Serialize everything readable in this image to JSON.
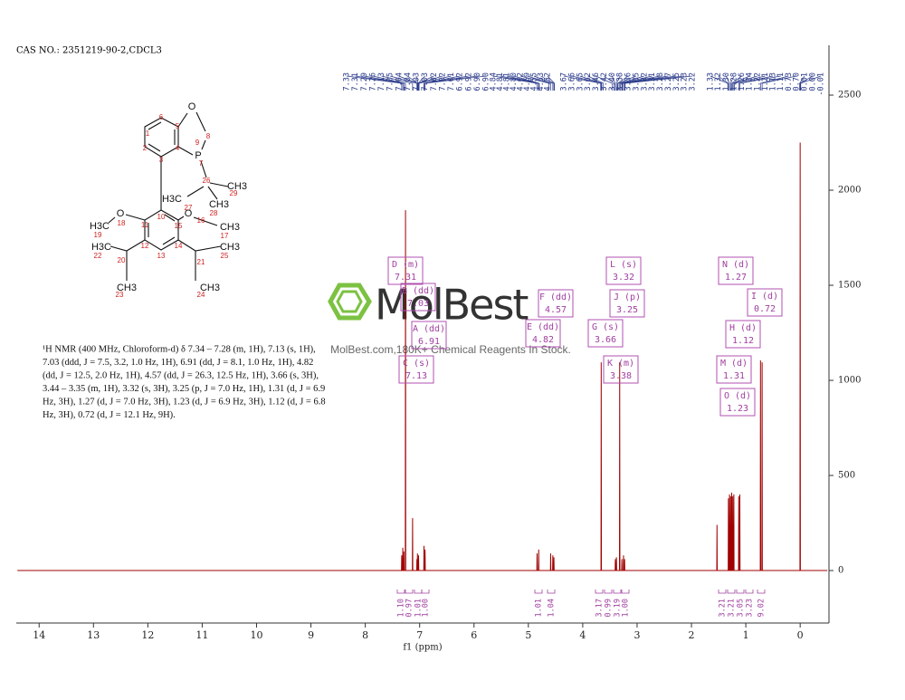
{
  "chart_data": {
    "type": "line",
    "title": "CAS NO.: 2351219-90-2,CDCL3",
    "x_label": "f1 (ppm)",
    "xlim": [
      14.42,
      -0.53
    ],
    "xticks": [
      14,
      13,
      12,
      11,
      10,
      9,
      8,
      7,
      6,
      5,
      4,
      3,
      2,
      1,
      0
    ],
    "ylim": [
      -276,
      2762
    ],
    "yticks": [
      0,
      500,
      1000,
      1500,
      2000,
      2500
    ],
    "x": [
      14.4,
      7.334,
      7.33,
      7.326,
      7.314,
      7.31,
      7.306,
      7.294,
      7.29,
      7.286,
      7.264,
      7.26,
      7.256,
      7.134,
      7.13,
      7.126,
      7.054,
      7.05,
      7.046,
      7.044,
      7.04,
      7.036,
      7.024,
      7.02,
      7.016,
      6.924,
      6.92,
      6.916,
      6.904,
      6.9,
      6.896,
      4.844,
      4.84,
      4.836,
      4.814,
      4.81,
      4.806,
      4.594,
      4.59,
      4.586,
      4.554,
      4.55,
      4.546,
      4.534,
      4.53,
      4.526,
      3.664,
      3.66,
      3.656,
      3.404,
      3.4,
      3.396,
      3.384,
      3.38,
      3.376,
      3.324,
      3.32,
      3.316,
      3.284,
      3.28,
      3.276,
      3.254,
      3.25,
      3.246,
      3.234,
      3.23,
      3.226,
      1.534,
      1.53,
      1.526,
      1.324,
      1.32,
      1.316,
      1.304,
      1.3,
      1.296,
      1.284,
      1.28,
      1.276,
      1.264,
      1.26,
      1.256,
      1.244,
      1.24,
      1.236,
      1.224,
      1.22,
      1.216,
      1.134,
      1.13,
      1.126,
      1.114,
      1.11,
      1.106,
      0.734,
      0.73,
      0.726,
      0.704,
      0.7,
      0.696,
      0.004,
      0,
      -0.004,
      -0.5
    ],
    "series": [
      {
        "color": "#a00000",
        "values": [
          0,
          0,
          80,
          0,
          0,
          120,
          0,
          0,
          100,
          0,
          0,
          1895,
          0,
          0,
          276,
          0,
          0,
          60,
          0,
          0,
          90,
          0,
          0,
          80,
          0,
          0,
          130,
          0,
          0,
          110,
          0,
          0,
          90,
          0,
          0,
          110,
          0,
          0,
          90,
          0,
          0,
          80,
          0,
          0,
          70,
          0,
          0,
          1095,
          0,
          0,
          60,
          0,
          0,
          70,
          0,
          0,
          1095,
          0,
          0,
          60,
          0,
          0,
          80,
          0,
          0,
          60,
          0,
          0,
          240,
          0,
          0,
          380,
          0,
          0,
          400,
          0,
          0,
          390,
          0,
          0,
          410,
          0,
          0,
          390,
          0,
          0,
          400,
          0,
          0,
          390,
          0,
          0,
          400,
          0,
          0,
          1105,
          0,
          0,
          1095,
          0,
          0,
          2250,
          0,
          0
        ]
      }
    ],
    "peak_labels": [
      [
        7.33,
        7.31,
        7.29,
        7.26,
        7.13,
        7.05,
        7.04,
        7.04,
        7.03,
        7.03,
        7.02,
        7.02,
        7.01,
        6.92,
        6.92,
        {
          "value": 6.9,
          "label": "6.90"
        },
        {
          "value": 6.9,
          "label": "6.90"
        }
      ],
      [
        4.84,
        4.81,
        4.81,
        {
          "value": 4.8,
          "label": "4.80"
        },
        4.62,
        4.59,
        4.55,
        4.53,
        4.52
      ],
      [
        3.67,
        3.66,
        3.65,
        3.62,
        3.46,
        3.42,
        {
          "value": 3.4,
          "label": "3.40"
        },
        3.38,
        3.36,
        3.35,
        3.32,
        3.31,
        3.28,
        3.27,
        3.25,
        3.23,
        3.22
      ],
      [
        1.33,
        1.32,
        {
          "value": 1.3,
          "label": "1.30"
        },
        1.28,
        1.26,
        1.24,
        1.22,
        1.21,
        1.13,
        1.11,
        0.73,
        {
          "value": 0.7,
          "label": "0.70"
        }
      ],
      [
        0.01,
        {
          "value": 0,
          "label": "0.00"
        },
        -0.01
      ]
    ],
    "multiplets": [
      {
        "label": "D (m)",
        "shift": 7.31
      },
      {
        "label": "B (dd)",
        "shift": 7.03
      },
      {
        "label": "A (dd)",
        "shift": 6.91
      },
      {
        "label": "C (s)",
        "shift": 7.13
      },
      {
        "label": "F (dd)",
        "shift": 4.57
      },
      {
        "label": "E (dd)",
        "shift": 4.82
      },
      {
        "label": "L (s)",
        "shift": 3.32
      },
      {
        "label": "J (p)",
        "shift": 3.25
      },
      {
        "label": "G (s)",
        "shift": 3.66
      },
      {
        "label": "K (m)",
        "shift": 3.38
      },
      {
        "label": "N (d)",
        "shift": 1.27
      },
      {
        "label": "I (d)",
        "shift": 0.72
      },
      {
        "label": "H (d)",
        "shift": 1.12
      },
      {
        "label": "M (d)",
        "shift": 1.31
      },
      {
        "label": "O (d)",
        "shift": 1.23
      }
    ],
    "integrals": [
      {
        "value": 1.1,
        "label": "1.10"
      },
      0.97,
      1.01,
      {
        "value": 1,
        "label": "1.00"
      },
      1.01,
      1.04,
      3.17,
      0.99,
      3.19,
      {
        "value": 1,
        "label": "1.00"
      },
      3.21,
      3.21,
      3.05,
      3.23,
      9.02
    ],
    "description": [
      "¹H NMR (400 MHz, Chloroform-d) δ 7.34 – 7.28 (m, 1H), 7.13 (s, 1H),",
      "7.03 (ddd, J = 7.5, 3.2, 1.0 Hz, 1H), 6.91 (dd, J = 8.1, 1.0 Hz, 1H), 4.82",
      "(dd, J = 12.5, 2.0 Hz, 1H), 4.57 (dd, J = 26.3, 12.5 Hz, 1H), 3.66 (s, 3H),",
      "3.44 – 3.35 (m, 1H), 3.32 (s, 3H), 3.25 (p, J = 7.0 Hz, 1H), 1.31 (d, J = 6.9",
      "Hz, 3H), 1.27 (d, J = 7.0 Hz, 3H), 1.23 (d, J = 6.9 Hz, 3H), 1.12 (d, J = 6.8",
      "Hz, 3H), 0.72 (d, J = 12.1 Hz, 9H)."
    ],
    "watermark": {
      "brand": "MolBest",
      "tagline": "MolBest.com,180K+ Chemical Reagents In Stock."
    },
    "structure": {
      "atoms": [
        "O",
        "P",
        "O",
        "O",
        "CH3",
        "H3C",
        "CH3",
        "H3C",
        "CH3",
        "H3C",
        "CH3",
        "CH3",
        "CH3"
      ],
      "numbers": [
        1,
        2,
        3,
        4,
        5,
        6,
        7,
        8,
        9,
        10,
        11,
        12,
        13,
        14,
        15,
        16,
        17,
        18,
        19,
        20,
        21,
        22,
        23,
        24,
        25,
        26,
        27,
        28,
        29
      ]
    }
  }
}
